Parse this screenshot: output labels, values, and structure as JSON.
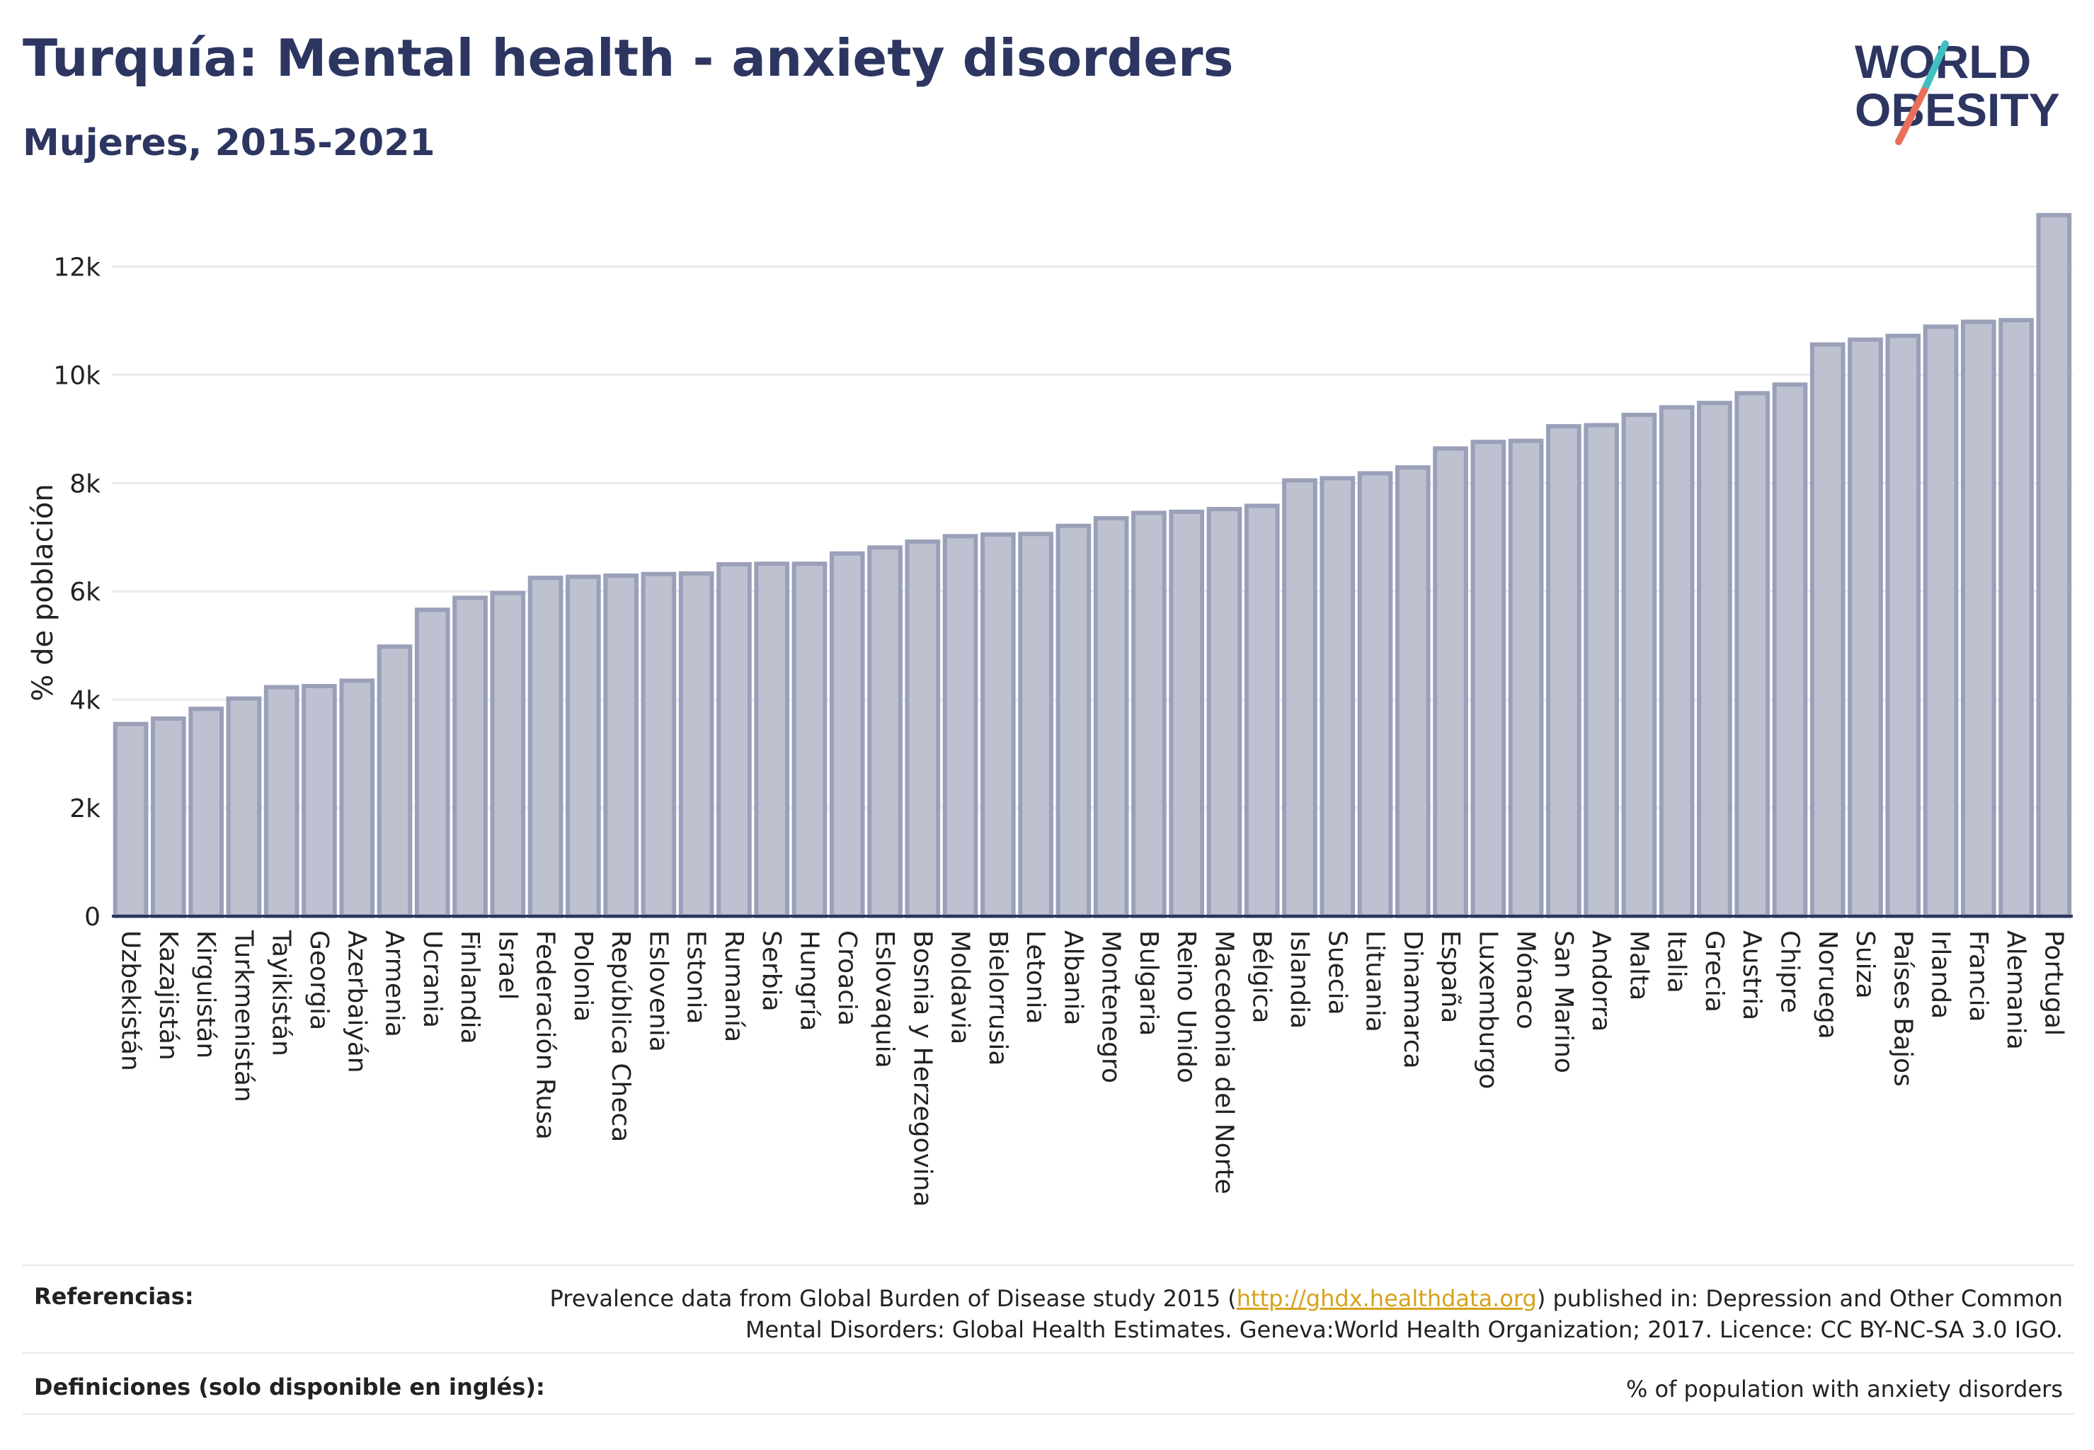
{
  "header": {
    "title": "Turquía: Mental health - anxiety disorders",
    "subtitle": "Mujeres, 2015-2021"
  },
  "logo": {
    "line1": "WORLD",
    "line2": "OBESITY",
    "text_color": "#2d3561",
    "slash_colors": [
      "#3fbfbf",
      "#e8705a"
    ]
  },
  "chart_data": {
    "type": "bar",
    "ylabel": "% de población",
    "ylim": [
      0,
      13000
    ],
    "yticks": [
      0,
      2000,
      4000,
      6000,
      8000,
      10000,
      12000
    ],
    "ytick_labels": [
      "0",
      "2k",
      "4k",
      "6k",
      "8k",
      "10k",
      "12k"
    ],
    "grid": true,
    "bar_color": "#bdc1d0",
    "bar_edge_color": "#9aa0b8",
    "categories": [
      "Uzbekistán",
      "Kazajistán",
      "Kirguistán",
      "Turkmenistán",
      "Tayikistán",
      "Georgia",
      "Azerbaiyán",
      "Armenia",
      "Ucrania",
      "Finlandia",
      "Israel",
      "Federación Rusa",
      "Polonia",
      "República Checa",
      "Eslovenia",
      "Estonia",
      "Rumanía",
      "Serbia",
      "Hungría",
      "Croacia",
      "Eslovaquia",
      "Bosnia y Herzegovina",
      "Moldavia",
      "Bielorrusia",
      "Letonia",
      "Albania",
      "Montenegro",
      "Bulgaria",
      "Reino Unido",
      "Macedonia del Norte",
      "Bélgica",
      "Islandia",
      "Suecia",
      "Lituania",
      "Dinamarca",
      "España",
      "Luxemburgo",
      "Mónaco",
      "San Marino",
      "Andorra",
      "Malta",
      "Italia",
      "Grecia",
      "Austria",
      "Chipre",
      "Noruega",
      "Suiza",
      "Países Bajos",
      "Irlanda",
      "Francia",
      "Alemania",
      "Portugal"
    ],
    "values": [
      3550,
      3650,
      3830,
      4020,
      4230,
      4250,
      4350,
      4980,
      5660,
      5880,
      5970,
      6250,
      6270,
      6290,
      6320,
      6330,
      6500,
      6510,
      6510,
      6700,
      6810,
      6920,
      7020,
      7050,
      7060,
      7210,
      7350,
      7450,
      7470,
      7520,
      7580,
      8050,
      8090,
      8180,
      8290,
      8640,
      8760,
      8780,
      9050,
      9070,
      9260,
      9400,
      9480,
      9660,
      9820,
      10560,
      10650,
      10720,
      10890,
      10980,
      11010,
      12950
    ]
  },
  "footer": {
    "references_label": "Referencias:",
    "references_text_before": "Prevalence data from Global Burden of Disease study 2015 (",
    "references_link": "http://ghdx.healthdata.org",
    "references_text_after": ") published in: Depression and Other Common Mental Disorders: Global Health Estimates. Geneva:World Health Organization; 2017. Licence: CC BY-NC-SA 3.0 IGO.",
    "definitions_label": "Definiciones (solo disponible en inglés):",
    "definitions_text": "% of population with anxiety disorders"
  }
}
